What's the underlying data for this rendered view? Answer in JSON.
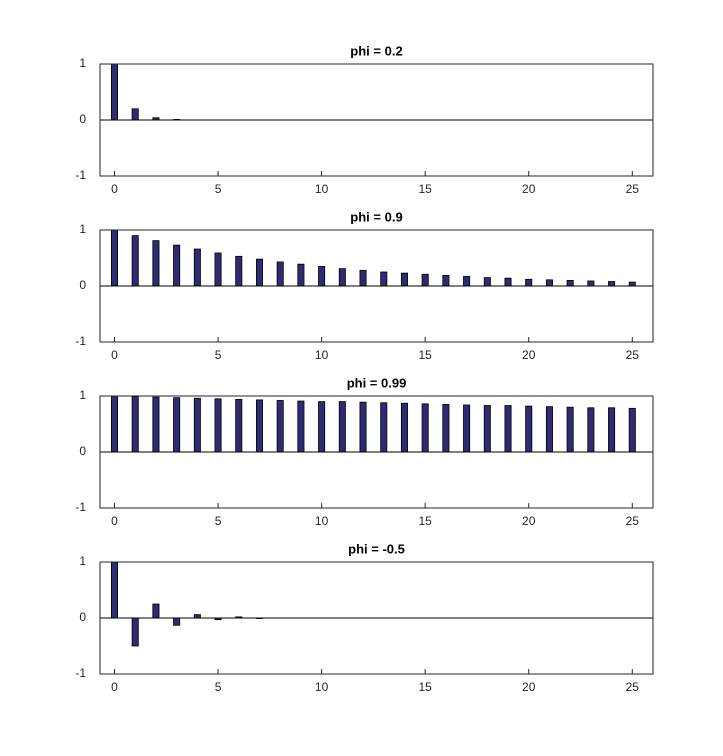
{
  "chart_data": [
    {
      "type": "bar",
      "title": "phi = 0.2",
      "color": "#2e2b73",
      "x": [
        0,
        1,
        2,
        3,
        4,
        5,
        6,
        7,
        8,
        9,
        10,
        11,
        12,
        13,
        14,
        15,
        16,
        17,
        18,
        19,
        20,
        21,
        22,
        23,
        24,
        25
      ],
      "values": [
        1,
        0.2,
        0.04,
        0.01,
        0,
        0,
        0,
        0,
        0,
        0,
        0,
        0,
        0,
        0,
        0,
        0,
        0,
        0,
        0,
        0,
        0,
        0,
        0,
        0,
        0,
        0
      ],
      "xlim": [
        -0.7,
        26
      ],
      "ylim": [
        -1,
        1
      ],
      "xticks": [
        0,
        5,
        10,
        15,
        20,
        25
      ],
      "yticks": [
        -1,
        0,
        1
      ]
    },
    {
      "type": "bar",
      "title": "phi = 0.9",
      "color": "#2e2b73",
      "x": [
        0,
        1,
        2,
        3,
        4,
        5,
        6,
        7,
        8,
        9,
        10,
        11,
        12,
        13,
        14,
        15,
        16,
        17,
        18,
        19,
        20,
        21,
        22,
        23,
        24,
        25
      ],
      "values": [
        1,
        0.9,
        0.81,
        0.73,
        0.66,
        0.59,
        0.53,
        0.48,
        0.43,
        0.39,
        0.35,
        0.31,
        0.28,
        0.25,
        0.23,
        0.21,
        0.19,
        0.17,
        0.15,
        0.14,
        0.12,
        0.11,
        0.1,
        0.09,
        0.08,
        0.07
      ],
      "xlim": [
        -0.7,
        26
      ],
      "ylim": [
        -1,
        1
      ],
      "xticks": [
        0,
        5,
        10,
        15,
        20,
        25
      ],
      "yticks": [
        -1,
        0,
        1
      ]
    },
    {
      "type": "bar",
      "title": "phi = 0.99",
      "color": "#2e2b73",
      "x": [
        0,
        1,
        2,
        3,
        4,
        5,
        6,
        7,
        8,
        9,
        10,
        11,
        12,
        13,
        14,
        15,
        16,
        17,
        18,
        19,
        20,
        21,
        22,
        23,
        24,
        25
      ],
      "values": [
        1,
        0.99,
        0.98,
        0.97,
        0.96,
        0.95,
        0.94,
        0.93,
        0.92,
        0.91,
        0.9,
        0.9,
        0.89,
        0.88,
        0.87,
        0.86,
        0.85,
        0.84,
        0.83,
        0.83,
        0.82,
        0.81,
        0.8,
        0.79,
        0.79,
        0.78
      ],
      "xlim": [
        -0.7,
        26
      ],
      "ylim": [
        -1,
        1
      ],
      "xticks": [
        0,
        5,
        10,
        15,
        20,
        25
      ],
      "yticks": [
        -1,
        0,
        1
      ]
    },
    {
      "type": "bar",
      "title": "phi = -0.5",
      "color": "#2e2b73",
      "x": [
        0,
        1,
        2,
        3,
        4,
        5,
        6,
        7,
        8,
        9,
        10,
        11,
        12,
        13,
        14,
        15,
        16,
        17,
        18,
        19,
        20,
        21,
        22,
        23,
        24,
        25
      ],
      "values": [
        1,
        -0.5,
        0.25,
        -0.13,
        0.06,
        -0.03,
        0.02,
        -0.01,
        0,
        0,
        0,
        0,
        0,
        0,
        0,
        0,
        0,
        0,
        0,
        0,
        0,
        0,
        0,
        0,
        0,
        0
      ],
      "xlim": [
        -0.7,
        26
      ],
      "ylim": [
        -1,
        1
      ],
      "xticks": [
        0,
        5,
        10,
        15,
        20,
        25
      ],
      "yticks": [
        -1,
        0,
        1
      ]
    }
  ]
}
